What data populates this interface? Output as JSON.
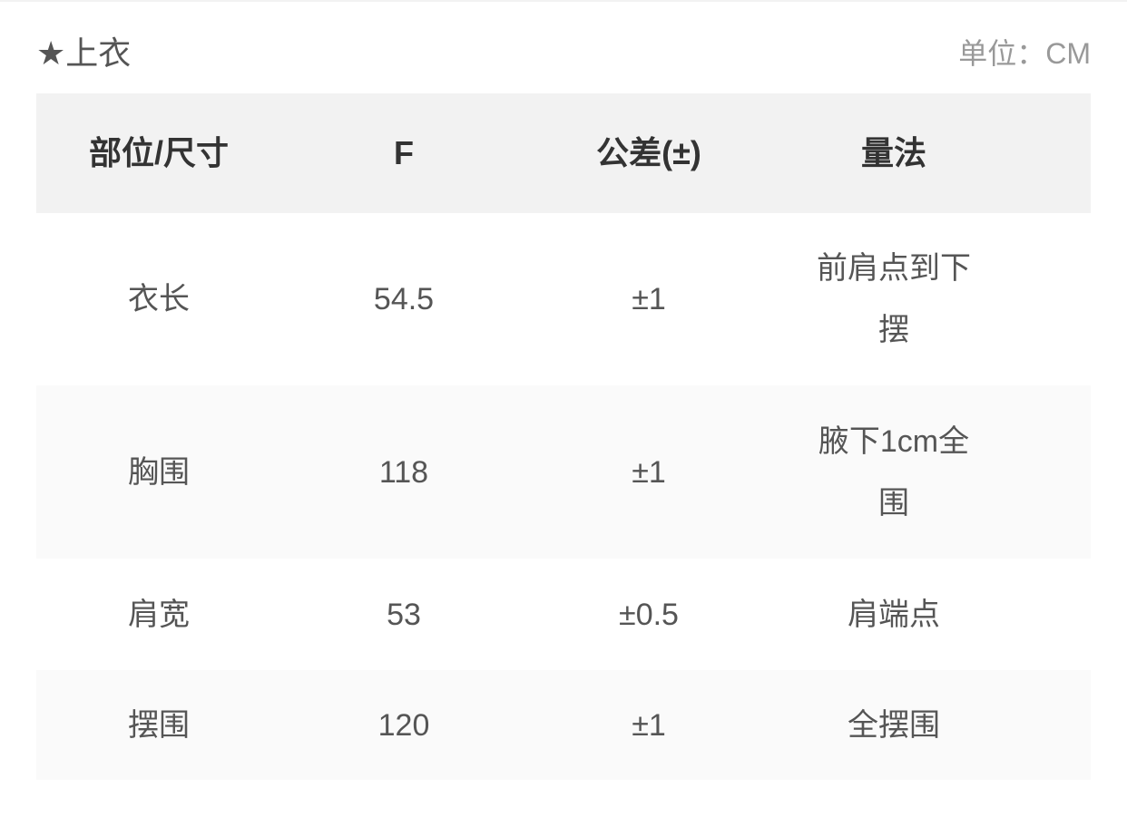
{
  "title": "★上衣",
  "unit": "单位：CM",
  "headers": [
    "部位/尺寸",
    "F",
    "公差(±)",
    "量法"
  ],
  "rows": [
    [
      "衣长",
      "54.5",
      "±1",
      "前肩点到下\n摆"
    ],
    [
      "胸围",
      "118",
      "±1",
      "腋下1cm全\n围"
    ],
    [
      "肩宽",
      "53",
      "±0.5",
      "肩端点"
    ],
    [
      "摆围",
      "120",
      "±1",
      "全摆围"
    ]
  ]
}
